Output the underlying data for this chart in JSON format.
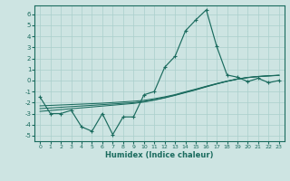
{
  "x": [
    0,
    1,
    2,
    3,
    4,
    5,
    6,
    7,
    8,
    9,
    10,
    11,
    12,
    13,
    14,
    15,
    16,
    17,
    18,
    19,
    20,
    21,
    22,
    23
  ],
  "line1_y": [
    -1.5,
    -3.0,
    -3.0,
    -2.7,
    -4.2,
    -4.6,
    -3.0,
    -4.9,
    -3.3,
    -3.3,
    -1.3,
    -1.0,
    1.2,
    2.2,
    4.5,
    5.5,
    6.4,
    3.1,
    0.5,
    0.3,
    -0.1,
    0.2,
    -0.2,
    0.0
  ],
  "trend1": [
    -2.8,
    -2.72,
    -2.64,
    -2.56,
    -2.48,
    -2.4,
    -2.32,
    -2.24,
    -2.16,
    -2.08,
    -1.95,
    -1.78,
    -1.58,
    -1.35,
    -1.1,
    -0.85,
    -0.58,
    -0.32,
    -0.08,
    0.12,
    0.26,
    0.35,
    0.41,
    0.46
  ],
  "trend2": [
    -2.55,
    -2.49,
    -2.43,
    -2.37,
    -2.31,
    -2.25,
    -2.19,
    -2.13,
    -2.07,
    -2.01,
    -1.9,
    -1.75,
    -1.55,
    -1.32,
    -1.07,
    -0.82,
    -0.55,
    -0.3,
    -0.07,
    0.13,
    0.27,
    0.36,
    0.42,
    0.47
  ],
  "trend3": [
    -2.3,
    -2.26,
    -2.22,
    -2.18,
    -2.14,
    -2.1,
    -2.06,
    -2.0,
    -1.94,
    -1.88,
    -1.8,
    -1.65,
    -1.48,
    -1.28,
    -1.02,
    -0.78,
    -0.52,
    -0.28,
    -0.06,
    0.14,
    0.28,
    0.37,
    0.43,
    0.48
  ],
  "bg_color": "#cde4e2",
  "line_color": "#1a6b5e",
  "grid_color": "#aacfcc",
  "xlabel": "Humidex (Indice chaleur)",
  "ylim": [
    -5.5,
    6.8
  ],
  "xlim": [
    -0.5,
    23.5
  ],
  "yticks": [
    -5,
    -4,
    -3,
    -2,
    -1,
    0,
    1,
    2,
    3,
    4,
    5,
    6
  ],
  "xticks": [
    0,
    1,
    2,
    3,
    4,
    5,
    6,
    7,
    8,
    9,
    10,
    11,
    12,
    13,
    14,
    15,
    16,
    17,
    18,
    19,
    20,
    21,
    22,
    23
  ]
}
